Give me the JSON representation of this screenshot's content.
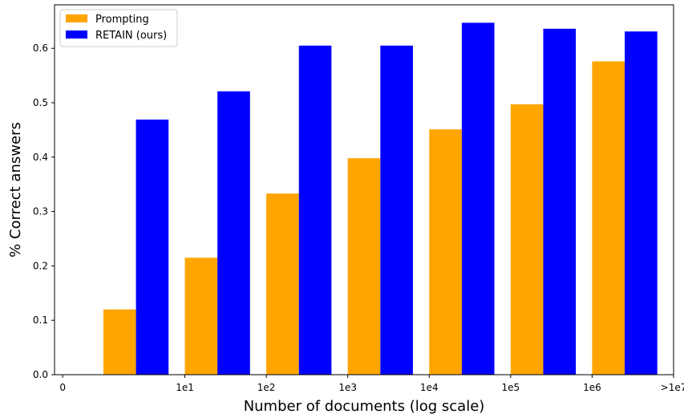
{
  "chart_data": {
    "type": "bar",
    "xlabel": "Number of documents (log scale)",
    "ylabel": "% Correct answers",
    "x_tick_labels": [
      "0",
      "1e1",
      "1e2",
      "1e3",
      "1e4",
      "1e5",
      "1e6",
      ">1e7"
    ],
    "y_tick_labels": [
      "0.0",
      "0.1",
      "0.2",
      "0.3",
      "0.4",
      "0.5",
      "0.6"
    ],
    "ylim": [
      0,
      0.68
    ],
    "grid": false,
    "legend_position": "top-left",
    "series": [
      {
        "name": "Prompting",
        "color": "#FFA500",
        "values": [
          0.12,
          0.215,
          0.333,
          0.398,
          0.451,
          0.497,
          0.576
        ]
      },
      {
        "name": "RETAIN (ours)",
        "color": "#0000FF",
        "values": [
          0.469,
          0.521,
          0.605,
          0.605,
          0.647,
          0.636,
          0.631
        ]
      }
    ]
  }
}
